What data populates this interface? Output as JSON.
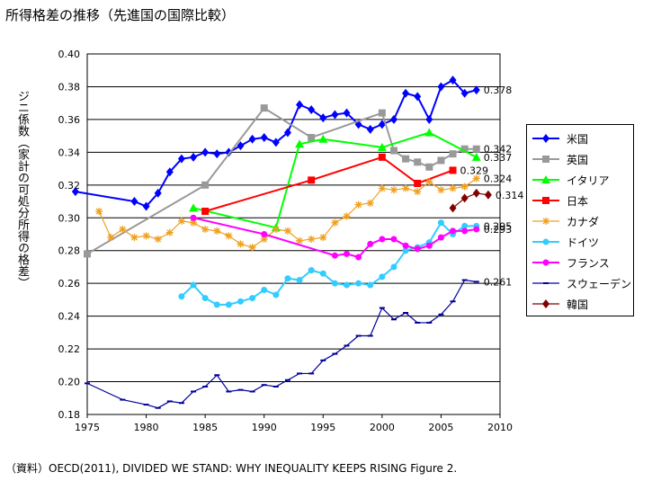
{
  "title": "所得格差の推移（先進国の国際比較）",
  "source": "（資料）OECD(2011), DIVIDED WE STAND: WHY INEQUALITY KEEPS RISING Figure 2.",
  "chart_data": {
    "type": "line",
    "ylabel": "ジニ係数（家計の可処分所得の格差）",
    "xlim": [
      1975,
      2010
    ],
    "ylim": [
      0.18,
      0.4
    ],
    "x_ticks": [
      1975,
      1980,
      1985,
      1990,
      1995,
      2000,
      2005,
      2010
    ],
    "y_ticks": [
      0.18,
      0.2,
      0.22,
      0.24,
      0.26,
      0.28,
      0.3,
      0.32,
      0.34,
      0.36,
      0.38,
      0.4
    ],
    "grid": "horizontal",
    "legend_position": "right",
    "series": [
      {
        "name": "米国",
        "color": "#0000ff",
        "marker": "diamond",
        "x": [
          1974,
          1979,
          1980,
          1981,
          1982,
          1983,
          1984,
          1985,
          1986,
          1987,
          1988,
          1989,
          1990,
          1991,
          1992,
          1993,
          1994,
          1995,
          1996,
          1997,
          1998,
          1999,
          2000,
          2001,
          2002,
          2003,
          2004,
          2005,
          2006,
          2007,
          2008
        ],
        "y": [
          0.316,
          0.31,
          0.307,
          0.315,
          0.328,
          0.336,
          0.337,
          0.34,
          0.339,
          0.34,
          0.344,
          0.348,
          0.349,
          0.346,
          0.352,
          0.369,
          0.366,
          0.361,
          0.363,
          0.364,
          0.357,
          0.354,
          0.357,
          0.36,
          0.376,
          0.374,
          0.36,
          0.38,
          0.384,
          0.376,
          0.378
        ],
        "end_label": "0.378"
      },
      {
        "name": "英国",
        "color": "#999999",
        "marker": "square",
        "x": [
          1975,
          1985,
          1990,
          1994,
          2000,
          2001,
          2002,
          2003,
          2004,
          2005,
          2006,
          2007,
          2008
        ],
        "y": [
          0.278,
          0.32,
          0.367,
          0.349,
          0.364,
          0.341,
          0.336,
          0.334,
          0.331,
          0.335,
          0.339,
          0.342,
          0.342
        ],
        "end_label": "0.342"
      },
      {
        "name": "イタリア",
        "color": "#00ff00",
        "marker": "triangle",
        "x": [
          1984,
          1991,
          1993,
          1995,
          2000,
          2004,
          2008
        ],
        "y": [
          0.306,
          0.294,
          0.345,
          0.348,
          0.343,
          0.352,
          0.337
        ],
        "end_label": "0.337"
      },
      {
        "name": "日本",
        "color": "#ff0000",
        "marker": "square",
        "x": [
          1985,
          1994,
          2000,
          2003,
          2006
        ],
        "y": [
          0.304,
          0.323,
          0.337,
          0.321,
          0.329
        ],
        "end_label": "0.329"
      },
      {
        "name": "カナダ",
        "color": "#f0a020",
        "marker": "star",
        "x": [
          1976,
          1977,
          1978,
          1979,
          1980,
          1981,
          1982,
          1983,
          1984,
          1985,
          1986,
          1987,
          1988,
          1989,
          1990,
          1991,
          1992,
          1993,
          1994,
          1995,
          1996,
          1997,
          1998,
          1999,
          2000,
          2001,
          2002,
          2003,
          2004,
          2005,
          2006,
          2007,
          2008
        ],
        "y": [
          0.304,
          0.288,
          0.293,
          0.288,
          0.289,
          0.287,
          0.291,
          0.298,
          0.297,
          0.293,
          0.292,
          0.289,
          0.284,
          0.282,
          0.287,
          0.293,
          0.292,
          0.286,
          0.287,
          0.288,
          0.297,
          0.301,
          0.308,
          0.309,
          0.318,
          0.317,
          0.318,
          0.316,
          0.322,
          0.317,
          0.318,
          0.319,
          0.324
        ],
        "end_label": "0.324"
      },
      {
        "name": "ドイツ",
        "color": "#33ccff",
        "marker": "circle",
        "x": [
          1983,
          1984,
          1985,
          1986,
          1987,
          1988,
          1989,
          1990,
          1991,
          1992,
          1993,
          1994,
          1995,
          1996,
          1997,
          1998,
          1999,
          2000,
          2001,
          2002,
          2003,
          2004,
          2005,
          2006,
          2007,
          2008
        ],
        "y": [
          0.252,
          0.259,
          0.251,
          0.247,
          0.247,
          0.249,
          0.251,
          0.256,
          0.253,
          0.263,
          0.262,
          0.268,
          0.266,
          0.26,
          0.259,
          0.26,
          0.259,
          0.264,
          0.27,
          0.28,
          0.282,
          0.285,
          0.297,
          0.29,
          0.295,
          0.295
        ],
        "end_label": "0.295"
      },
      {
        "name": "フランス",
        "color": "#ff00ff",
        "marker": "circle",
        "x": [
          1984,
          1990,
          1996,
          1997,
          1998,
          1999,
          2000,
          2001,
          2002,
          2003,
          2004,
          2005,
          2006,
          2007,
          2008
        ],
        "y": [
          0.3,
          0.29,
          0.277,
          0.278,
          0.276,
          0.284,
          0.287,
          0.287,
          0.283,
          0.281,
          0.283,
          0.288,
          0.292,
          0.292,
          0.293
        ],
        "end_label": "0.293"
      },
      {
        "name": "スウェーデン",
        "color": "#000099",
        "marker": "dash",
        "x": [
          1975,
          1978,
          1980,
          1981,
          1982,
          1983,
          1984,
          1985,
          1986,
          1987,
          1988,
          1989,
          1990,
          1991,
          1992,
          1993,
          1994,
          1995,
          1996,
          1997,
          1998,
          1999,
          2000,
          2001,
          2002,
          2003,
          2004,
          2005,
          2006,
          2007,
          2008
        ],
        "y": [
          0.199,
          0.189,
          0.186,
          0.184,
          0.188,
          0.187,
          0.194,
          0.197,
          0.204,
          0.194,
          0.195,
          0.194,
          0.198,
          0.197,
          0.201,
          0.205,
          0.205,
          0.213,
          0.217,
          0.222,
          0.228,
          0.228,
          0.245,
          0.238,
          0.242,
          0.236,
          0.236,
          0.241,
          0.249,
          0.262,
          0.261
        ],
        "end_label": "0.261"
      },
      {
        "name": "韓国",
        "color": "#800000",
        "marker": "diamond",
        "x": [
          2006,
          2007,
          2008,
          2009
        ],
        "y": [
          0.306,
          0.312,
          0.315,
          0.314
        ],
        "end_label": "0.314"
      }
    ]
  }
}
